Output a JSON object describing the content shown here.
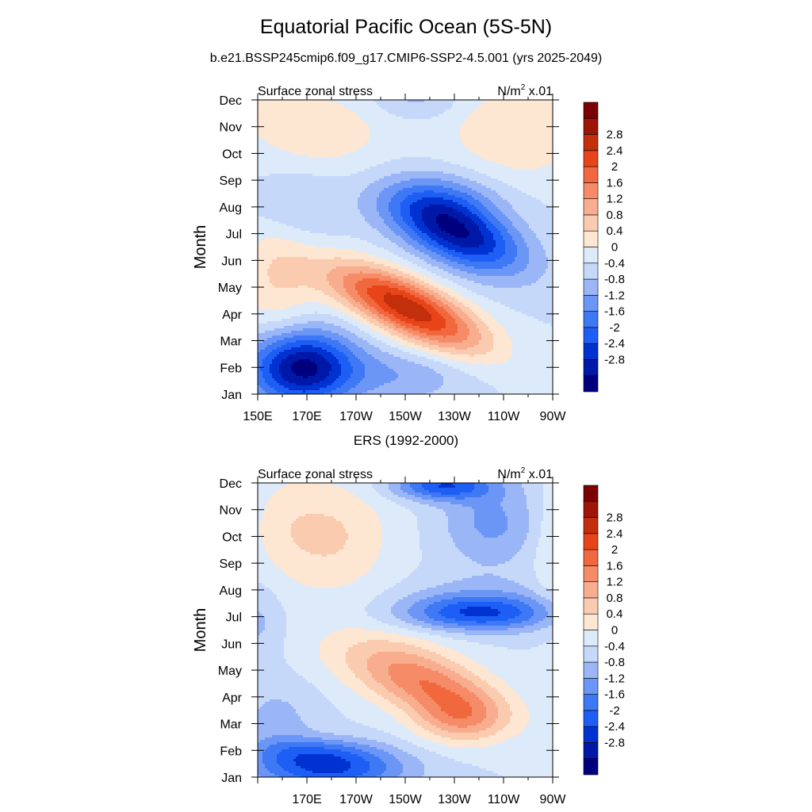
{
  "figure": {
    "title": "Equatorial Pacific Ocean (5S-5N)",
    "subtitle": "b.e21.BSSP245cmip6.f09_g17.CMIP6-SSP2-4.5.001 (yrs 2025-2049)",
    "second_title": "ERS (1992-2000)"
  },
  "colors": {
    "levels": [
      "#00007f",
      "#0018a8",
      "#0032d1",
      "#1d5ef4",
      "#3e78f5",
      "#6b96f6",
      "#9bb6f7",
      "#c6d8f9",
      "#ddeafa",
      "#fde6d2",
      "#fbcbb0",
      "#f8ad8f",
      "#f58b67",
      "#f2683e",
      "#e74419",
      "#c32e0b",
      "#9d1607",
      "#7b0004"
    ]
  },
  "chart_data": [
    {
      "type": "heatmap",
      "left_label": "Surface zonal stress",
      "right_label": "N/m",
      "right_label_sup": "2",
      "right_label_suffix": " x.01",
      "ylabel": "Month",
      "xlabel": "",
      "x_ticks": [
        "150E",
        "170E",
        "170W",
        "150W",
        "130W",
        "110W",
        "90W"
      ],
      "y_ticks": [
        "Jan",
        "Feb",
        "Mar",
        "Apr",
        "May",
        "Jun",
        "Jul",
        "Aug",
        "Sep",
        "Oct",
        "Nov",
        "Dec"
      ],
      "colorbar_labels": [
        "-2.8",
        "-2.4",
        "-2",
        "-1.6",
        "-1.2",
        "-0.8",
        "-0.4",
        "0",
        "0.4",
        "0.8",
        "1.2",
        "1.6",
        "2",
        "2.4",
        "2.8"
      ],
      "levels": [
        -2.8,
        -2.4,
        -2.0,
        -1.6,
        -1.2,
        -0.8,
        -0.4,
        0,
        0.4,
        0.8,
        1.2,
        1.6,
        2.0,
        2.4,
        2.8
      ],
      "xlim": [
        150,
        270
      ],
      "ylim": [
        1,
        12
      ],
      "features": [
        {
          "lon": 168,
          "month": 2.0,
          "rx": 22,
          "ry": 1.4,
          "amp": -3.0
        },
        {
          "lon": 210,
          "month": 1.7,
          "rx": 26,
          "ry": 1.0,
          "amp": -0.7
        },
        {
          "lon": 203,
          "month": 4.7,
          "rx": 28,
          "ry": 1.05,
          "amp": 2.2,
          "tilt": -0.03
        },
        {
          "lon": 222,
          "month": 3.5,
          "rx": 26,
          "ry": 1.05,
          "amp": 1.6,
          "tilt": -0.03
        },
        {
          "lon": 158,
          "month": 5.4,
          "rx": 16,
          "ry": 2.5,
          "amp": 0.8
        },
        {
          "lon": 232,
          "month": 7.0,
          "rx": 26,
          "ry": 1.25,
          "amp": -2.7,
          "tilt": -0.03
        },
        {
          "lon": 225,
          "month": 8.3,
          "rx": 26,
          "ry": 1.1,
          "amp": -0.9
        },
        {
          "lon": 165,
          "month": 8.0,
          "rx": 18,
          "ry": 1.5,
          "amp": -0.6
        },
        {
          "lon": 175,
          "month": 10.8,
          "rx": 28,
          "ry": 1.6,
          "amp": 0.7
        },
        {
          "lon": 255,
          "month": 10.8,
          "rx": 28,
          "ry": 1.9,
          "amp": 0.8
        },
        {
          "lon": 215,
          "month": 12.0,
          "rx": 18,
          "ry": 0.7,
          "amp": -0.55
        },
        {
          "lon": 150,
          "month": 12.0,
          "rx": 14,
          "ry": 1.0,
          "amp": 0.5
        }
      ]
    },
    {
      "type": "heatmap",
      "left_label": "Surface zonal stress",
      "right_label": "N/m",
      "right_label_sup": "2",
      "right_label_suffix": " x.01",
      "ylabel": "Month",
      "xlabel": "",
      "x_ticks": [
        "",
        "170E",
        "170W",
        "150W",
        "130W",
        "110W",
        "90W"
      ],
      "y_ticks": [
        "Jan",
        "Feb",
        "Mar",
        "Apr",
        "May",
        "Jun",
        "Jul",
        "Aug",
        "Sep",
        "Oct",
        "Nov",
        "Dec"
      ],
      "colorbar_labels": [
        "-2.8",
        "-2.4",
        "-2",
        "-1.6",
        "-1.2",
        "-0.8",
        "-0.4",
        "0",
        "0.4",
        "0.8",
        "1.2",
        "1.6",
        "2",
        "2.4",
        "2.8"
      ],
      "levels": [
        -2.8,
        -2.4,
        -2.0,
        -1.6,
        -1.2,
        -0.8,
        -0.4,
        0,
        0.4,
        0.8,
        1.2,
        1.6,
        2.0,
        2.4,
        2.8
      ],
      "xlim": [
        150,
        270
      ],
      "ylim": [
        1,
        12
      ],
      "features": [
        {
          "lon": 180,
          "month": 1.3,
          "rx": 30,
          "ry": 0.8,
          "amp": -2.0
        },
        {
          "lon": 172,
          "month": 2.0,
          "rx": 26,
          "ry": 0.55,
          "amp": -0.8
        },
        {
          "lon": 158,
          "month": 3.0,
          "rx": 16,
          "ry": 1.6,
          "amp": -0.55
        },
        {
          "lon": 220,
          "month": 4.4,
          "rx": 30,
          "ry": 1.2,
          "amp": 1.9,
          "tilt": -0.025
        },
        {
          "lon": 232,
          "month": 3.1,
          "rx": 18,
          "ry": 0.9,
          "amp": 1.1
        },
        {
          "lon": 200,
          "month": 5.8,
          "rx": 30,
          "ry": 1.2,
          "amp": 0.4
        },
        {
          "lon": 240,
          "month": 7.1,
          "rx": 32,
          "ry": 0.65,
          "amp": -1.7
        },
        {
          "lon": 240,
          "month": 7.6,
          "rx": 30,
          "ry": 0.9,
          "amp": -0.6
        },
        {
          "lon": 150,
          "month": 6.8,
          "rx": 10,
          "ry": 1.4,
          "amp": -0.5
        },
        {
          "lon": 180,
          "month": 10.0,
          "rx": 24,
          "ry": 2.2,
          "amp": 0.85
        },
        {
          "lon": 160,
          "month": 10.5,
          "rx": 14,
          "ry": 2.0,
          "amp": 0.3
        },
        {
          "lon": 245,
          "month": 10.5,
          "rx": 20,
          "ry": 1.6,
          "amp": -0.9
        },
        {
          "lon": 225,
          "month": 11.9,
          "rx": 20,
          "ry": 0.55,
          "amp": -1.9
        },
        {
          "lon": 270,
          "month": 9.5,
          "rx": 8,
          "ry": 2.5,
          "amp": 0.5
        }
      ]
    }
  ]
}
